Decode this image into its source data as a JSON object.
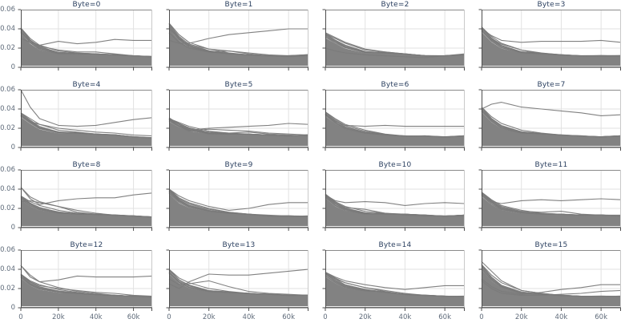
{
  "figure": {
    "description": "Grid of 16 line-chart small multiples, one per byte value, many gray traces decaying over training steps"
  },
  "chart_data": {
    "type": "line",
    "grid": "4x4",
    "title": "",
    "xlabel": "",
    "ylabel": "",
    "x_ticks": [
      "0",
      "20k",
      "40k",
      "60k"
    ],
    "x_tick_values": [
      0,
      20000,
      40000,
      60000
    ],
    "y_ticks": [
      "0.06",
      "0.04",
      "0.02",
      "0"
    ],
    "y_tick_values": [
      0.06,
      0.04,
      0.02,
      0
    ],
    "x_range": [
      0,
      70000
    ],
    "y_range": [
      0,
      0.06
    ],
    "grid_on": true,
    "legend": "none",
    "x_samples": [
      0,
      5000,
      10000,
      20000,
      30000,
      40000,
      50000,
      60000,
      70000
    ],
    "colors": {
      "line": "#7a7a7a",
      "fill": "#828282",
      "title": "#2a3f5f",
      "tick": "#5f6b7a",
      "grid": "#e2e2e2",
      "axis_dark": "#4d4d4d",
      "axis_top": "#8a8a8a",
      "axis_right": "#c9c9c9",
      "background": "#ffffff"
    },
    "subplots": [
      {
        "title": "Byte=0",
        "envelope": [
          0.041,
          0.03,
          0.023,
          0.017,
          0.015,
          0.014,
          0.013,
          0.012,
          0.011
        ],
        "outliers": [
          [
            0.03,
            0.026,
            0.023,
            0.027,
            0.0245,
            0.026,
            0.029,
            0.028,
            0.028
          ],
          [
            0.036,
            0.028,
            0.022,
            0.018,
            0.016,
            0.016,
            0.014,
            0.012,
            0.011
          ]
        ]
      },
      {
        "title": "Byte=1",
        "envelope": [
          0.046,
          0.034,
          0.026,
          0.019,
          0.015,
          0.013,
          0.012,
          0.012,
          0.013
        ],
        "outliers": [
          [
            0.028,
            0.025,
            0.025,
            0.03,
            0.034,
            0.036,
            0.038,
            0.04,
            0.04
          ],
          [
            0.04,
            0.03,
            0.024,
            0.019,
            0.017,
            0.015,
            0.013,
            0.012,
            0.012
          ],
          [
            0.036,
            0.026,
            0.02,
            0.016,
            0.017,
            0.014,
            0.012,
            0.011,
            0.012
          ]
        ]
      },
      {
        "title": "Byte=2",
        "envelope": [
          0.035,
          0.03,
          0.025,
          0.018,
          0.016,
          0.014,
          0.012,
          0.012,
          0.013
        ],
        "outliers": [
          [
            0.036,
            0.031,
            0.026,
            0.019,
            0.016,
            0.014,
            0.012,
            0.012,
            0.013
          ],
          [
            0.02,
            0.017,
            0.015,
            0.013,
            0.012,
            0.011,
            0.01,
            0.012,
            0.014
          ]
        ]
      },
      {
        "title": "Byte=3",
        "envelope": [
          0.042,
          0.032,
          0.025,
          0.018,
          0.015,
          0.013,
          0.012,
          0.012,
          0.012
        ],
        "outliers": [
          [
            0.04,
            0.033,
            0.028,
            0.026,
            0.027,
            0.027,
            0.027,
            0.028,
            0.026
          ],
          [
            0.042,
            0.03,
            0.024,
            0.018,
            0.014,
            0.013,
            0.012,
            0.012,
            0.012
          ]
        ]
      },
      {
        "title": "Byte=4",
        "envelope": [
          0.036,
          0.03,
          0.024,
          0.018,
          0.016,
          0.014,
          0.013,
          0.011,
          0.01
        ],
        "outliers": [
          [
            0.06,
            0.042,
            0.03,
            0.023,
            0.022,
            0.023,
            0.026,
            0.029,
            0.031
          ],
          [
            0.033,
            0.027,
            0.024,
            0.02,
            0.018,
            0.016,
            0.015,
            0.013,
            0.012
          ]
        ]
      },
      {
        "title": "Byte=5",
        "envelope": [
          0.03,
          0.026,
          0.022,
          0.017,
          0.015,
          0.014,
          0.013,
          0.012,
          0.013
        ],
        "outliers": [
          [
            0.031,
            0.024,
            0.018,
            0.02,
            0.021,
            0.022,
            0.023,
            0.025,
            0.024
          ],
          [
            0.029,
            0.022,
            0.017,
            0.019,
            0.018,
            0.017,
            0.015,
            0.014,
            0.013
          ],
          [
            0.03,
            0.025,
            0.02,
            0.016,
            0.015,
            0.016,
            0.014,
            0.013,
            0.012
          ]
        ]
      },
      {
        "title": "Byte=6",
        "envelope": [
          0.037,
          0.03,
          0.024,
          0.018,
          0.014,
          0.012,
          0.012,
          0.011,
          0.012
        ],
        "outliers": [
          [
            0.035,
            0.027,
            0.023,
            0.022,
            0.023,
            0.022,
            0.022,
            0.022,
            0.022
          ]
        ]
      },
      {
        "title": "Byte=7",
        "envelope": [
          0.042,
          0.032,
          0.025,
          0.018,
          0.015,
          0.013,
          0.012,
          0.011,
          0.012
        ],
        "outliers": [
          [
            0.04,
            0.045,
            0.047,
            0.042,
            0.04,
            0.038,
            0.036,
            0.033,
            0.034
          ]
        ]
      },
      {
        "title": "Byte=8",
        "envelope": [
          0.033,
          0.027,
          0.023,
          0.018,
          0.015,
          0.014,
          0.013,
          0.012,
          0.011
        ],
        "outliers": [
          [
            0.042,
            0.03,
            0.024,
            0.028,
            0.03,
            0.031,
            0.031,
            0.034,
            0.036
          ],
          [
            0.042,
            0.032,
            0.027,
            0.022,
            0.016,
            0.014,
            0.013,
            0.012,
            0.011
          ],
          [
            0.027,
            0.028,
            0.026,
            0.022,
            0.018,
            0.015,
            0.013,
            0.012,
            0.011
          ]
        ]
      },
      {
        "title": "Byte=9",
        "envelope": [
          0.04,
          0.031,
          0.026,
          0.02,
          0.016,
          0.014,
          0.012,
          0.012,
          0.012
        ],
        "outliers": [
          [
            0.04,
            0.033,
            0.028,
            0.022,
            0.018,
            0.02,
            0.024,
            0.026,
            0.026
          ],
          [
            0.038,
            0.03,
            0.025,
            0.019,
            0.016,
            0.014,
            0.013,
            0.012,
            0.012
          ]
        ]
      },
      {
        "title": "Byte=10",
        "envelope": [
          0.035,
          0.027,
          0.022,
          0.017,
          0.015,
          0.014,
          0.013,
          0.012,
          0.013
        ],
        "outliers": [
          [
            0.034,
            0.028,
            0.026,
            0.027,
            0.026,
            0.023,
            0.025,
            0.026,
            0.025
          ],
          [
            0.033,
            0.026,
            0.021,
            0.019,
            0.015,
            0.013,
            0.012,
            0.012,
            0.012
          ]
        ]
      },
      {
        "title": "Byte=11",
        "envelope": [
          0.037,
          0.029,
          0.023,
          0.018,
          0.015,
          0.014,
          0.013,
          0.013,
          0.012
        ],
        "outliers": [
          [
            0.035,
            0.027,
            0.025,
            0.028,
            0.029,
            0.028,
            0.029,
            0.03,
            0.029
          ],
          [
            0.036,
            0.028,
            0.022,
            0.017,
            0.016,
            0.017,
            0.014,
            0.013,
            0.013
          ]
        ]
      },
      {
        "title": "Byte=12",
        "envelope": [
          0.035,
          0.028,
          0.024,
          0.019,
          0.016,
          0.014,
          0.013,
          0.012,
          0.011
        ],
        "outliers": [
          [
            0.044,
            0.032,
            0.027,
            0.029,
            0.033,
            0.032,
            0.032,
            0.032,
            0.033
          ],
          [
            0.044,
            0.034,
            0.027,
            0.021,
            0.017,
            0.015,
            0.013,
            0.012,
            0.011
          ],
          [
            0.034,
            0.027,
            0.023,
            0.02,
            0.018,
            0.016,
            0.015,
            0.013,
            0.012
          ]
        ]
      },
      {
        "title": "Byte=13",
        "envelope": [
          0.04,
          0.031,
          0.026,
          0.02,
          0.017,
          0.015,
          0.014,
          0.013,
          0.013
        ],
        "outliers": [
          [
            0.025,
            0.02,
            0.027,
            0.035,
            0.034,
            0.034,
            0.036,
            0.038,
            0.04
          ],
          [
            0.03,
            0.024,
            0.025,
            0.028,
            0.022,
            0.017,
            0.015,
            0.014,
            0.013
          ]
        ]
      },
      {
        "title": "Byte=14",
        "envelope": [
          0.037,
          0.031,
          0.026,
          0.021,
          0.017,
          0.014,
          0.013,
          0.012,
          0.012
        ],
        "outliers": [
          [
            0.037,
            0.032,
            0.028,
            0.024,
            0.021,
            0.019,
            0.021,
            0.023,
            0.023
          ],
          [
            0.036,
            0.03,
            0.026,
            0.021,
            0.018,
            0.015,
            0.013,
            0.012,
            0.012
          ]
        ]
      },
      {
        "title": "Byte=15",
        "envelope": [
          0.045,
          0.034,
          0.026,
          0.018,
          0.015,
          0.013,
          0.012,
          0.012,
          0.012
        ],
        "outliers": [
          [
            0.048,
            0.038,
            0.028,
            0.018,
            0.015,
            0.013,
            0.012,
            0.012,
            0.012
          ],
          [
            0.03,
            0.022,
            0.017,
            0.014,
            0.016,
            0.019,
            0.021,
            0.024,
            0.024
          ],
          [
            0.028,
            0.02,
            0.015,
            0.013,
            0.013,
            0.014,
            0.015,
            0.017,
            0.018
          ]
        ]
      }
    ]
  }
}
